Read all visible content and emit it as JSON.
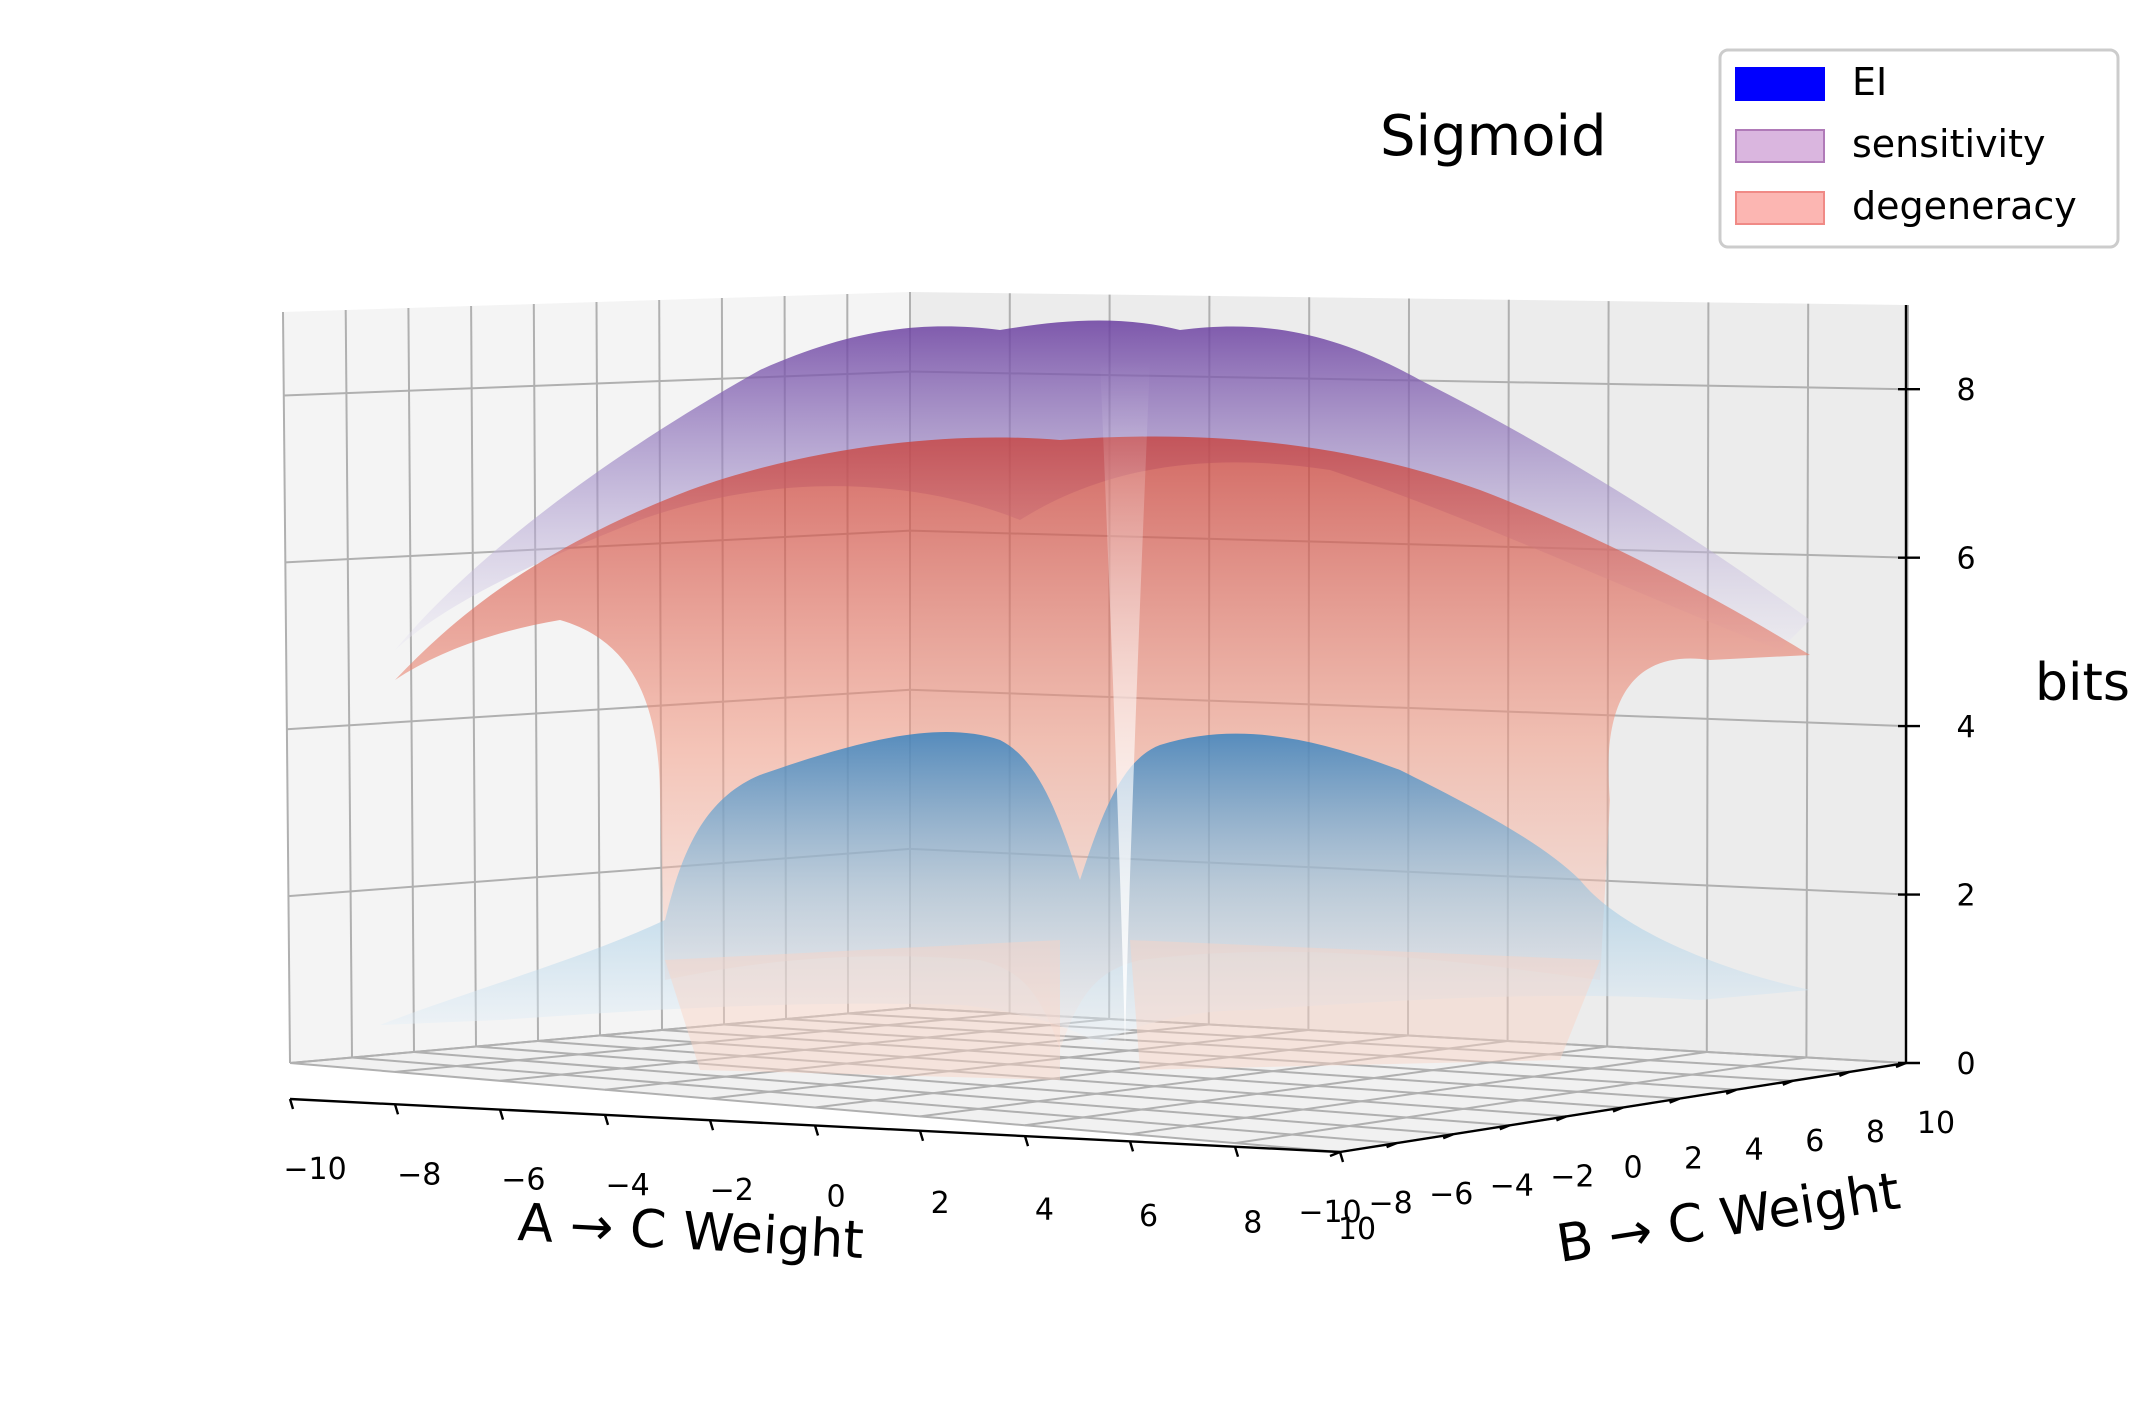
{
  "chart_data": {
    "type": "surface3d",
    "title": "Sigmoid",
    "xlabel": "A → C Weight",
    "ylabel": "B → C Weight",
    "zlabel": "bits",
    "x_ticks": [
      "−10",
      "−8",
      "−6",
      "−4",
      "−2",
      "0",
      "2",
      "4",
      "6",
      "8",
      "10"
    ],
    "y_ticks": [
      "−10",
      "−8",
      "−6",
      "−4",
      "−2",
      "0",
      "2",
      "4",
      "6",
      "8",
      "10"
    ],
    "z_ticks": [
      "0",
      "2",
      "4",
      "6",
      "8"
    ],
    "xlim": [
      -10,
      10
    ],
    "ylim": [
      -10,
      10
    ],
    "zlim": [
      0,
      9
    ],
    "grid": true,
    "legend_position": "top-right",
    "series": [
      {
        "name": "EI",
        "color": "#0000ff",
        "colormap": "Blues",
        "approx_peak_bits": 3.8,
        "approx_edge_bits": 0.1,
        "center_bits": 0
      },
      {
        "name": "sensitivity",
        "color": "#d6aedc",
        "colormap": "Purples",
        "approx_peak_bits": 8.8,
        "approx_edge_bits": 4.5,
        "center_bits": 6.5
      },
      {
        "name": "degeneracy",
        "color": "#fcaeaa",
        "colormap": "Reds",
        "approx_peak_bits": 7.0,
        "approx_edge_bits": 4.6,
        "center_bits": 0
      }
    ]
  }
}
